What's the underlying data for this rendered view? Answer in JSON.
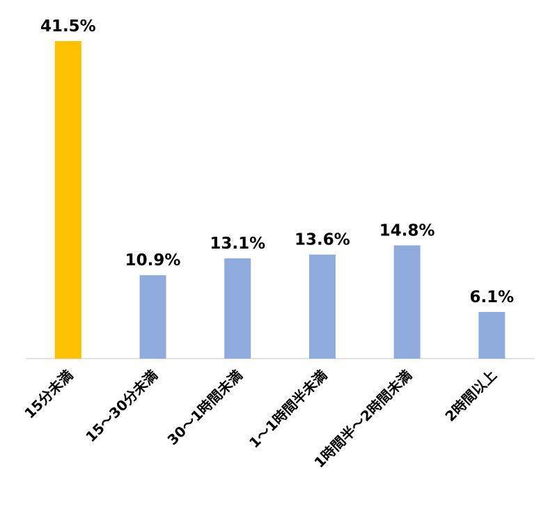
{
  "chart_data": {
    "type": "bar",
    "categories": [
      "15分未満",
      "15～30分未満",
      "30～1時間未満",
      "1～1時間半未満",
      "1時間半～2時間未満",
      "2時間以上"
    ],
    "values": [
      41.5,
      10.9,
      13.1,
      13.6,
      14.8,
      6.1
    ],
    "value_labels": [
      "41.5%",
      "10.9%",
      "13.1%",
      "13.6%",
      "14.8%",
      "6.1%"
    ],
    "colors": [
      "#ffc000",
      "#8faadc",
      "#8faadc",
      "#8faadc",
      "#8faadc",
      "#8faadc"
    ]
  }
}
